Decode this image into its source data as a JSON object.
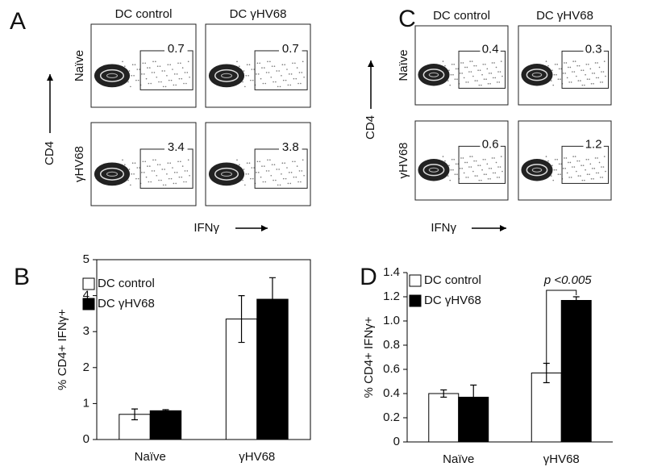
{
  "panels": [
    {
      "letter": "A",
      "columns": [
        "DC control",
        "DC γHV68"
      ],
      "rows": [
        "Naïve",
        "γHV68"
      ],
      "y_label": "CD4",
      "x_label": "IFNγ",
      "gates": [
        [
          0.7,
          0.7
        ],
        [
          3.4,
          3.8
        ]
      ]
    },
    {
      "letter": "C",
      "columns": [
        "DC control",
        "DC γHV68"
      ],
      "rows": [
        "Naïve",
        "γHV68"
      ],
      "y_label": "CD4",
      "x_label": "IFNγ",
      "gates": [
        [
          0.4,
          0.3
        ],
        [
          0.6,
          1.2
        ]
      ]
    }
  ],
  "chart_data": [
    {
      "type": "bar",
      "letter": "B",
      "y_label": "% CD4+ IFNγ+",
      "categories": [
        "Naïve",
        "γHV68"
      ],
      "series": [
        {
          "name": "DC control",
          "color": "#ffffff",
          "values": [
            0.7,
            3.35
          ],
          "errors": [
            0.15,
            0.65
          ]
        },
        {
          "name": "DC γHV68",
          "color": "#000000",
          "values": [
            0.8,
            3.9
          ],
          "errors": [
            0.03,
            0.6
          ]
        }
      ],
      "ylim": [
        0,
        5
      ],
      "yticks": [
        0,
        1,
        2,
        3,
        4,
        5
      ],
      "frame": true
    },
    {
      "type": "bar",
      "letter": "D",
      "y_label": "% CD4+ IFNγ+",
      "categories": [
        "Naïve",
        "γHV68"
      ],
      "series": [
        {
          "name": "DC control",
          "color": "#ffffff",
          "values": [
            0.4,
            0.57
          ],
          "errors": [
            0.03,
            0.08
          ]
        },
        {
          "name": "DC γHV68",
          "color": "#000000",
          "values": [
            0.37,
            1.17
          ],
          "errors": [
            0.1,
            0.03
          ]
        }
      ],
      "ylim": [
        0,
        1.4
      ],
      "yticks": [
        0,
        0.2,
        0.4,
        0.6,
        0.8,
        {
          "value": 1,
          "label": "1.0"
        },
        1.2,
        1.4
      ],
      "annotation": "p <0.005",
      "frame": false
    }
  ]
}
